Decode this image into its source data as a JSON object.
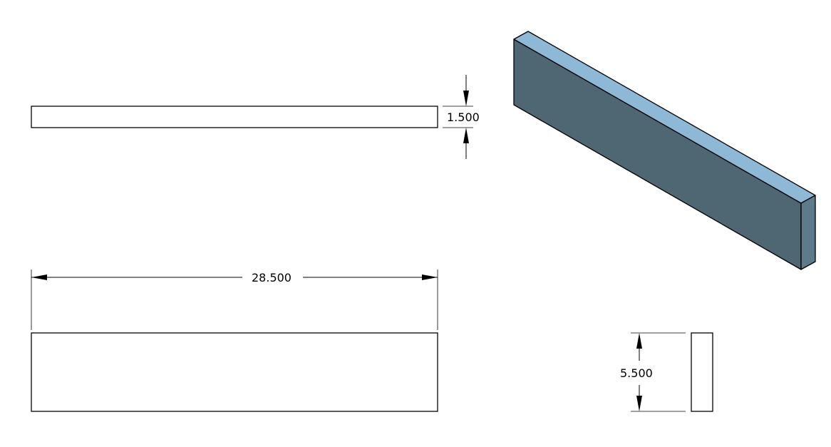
{
  "dimensions": {
    "thickness": "1.500",
    "length": "28.500",
    "height": "5.500"
  },
  "colors": {
    "iso_top_face": "#8eb9d6",
    "iso_front_face": "#4f6673",
    "iso_end_face": "#5e7b8c",
    "line": "#000000"
  }
}
